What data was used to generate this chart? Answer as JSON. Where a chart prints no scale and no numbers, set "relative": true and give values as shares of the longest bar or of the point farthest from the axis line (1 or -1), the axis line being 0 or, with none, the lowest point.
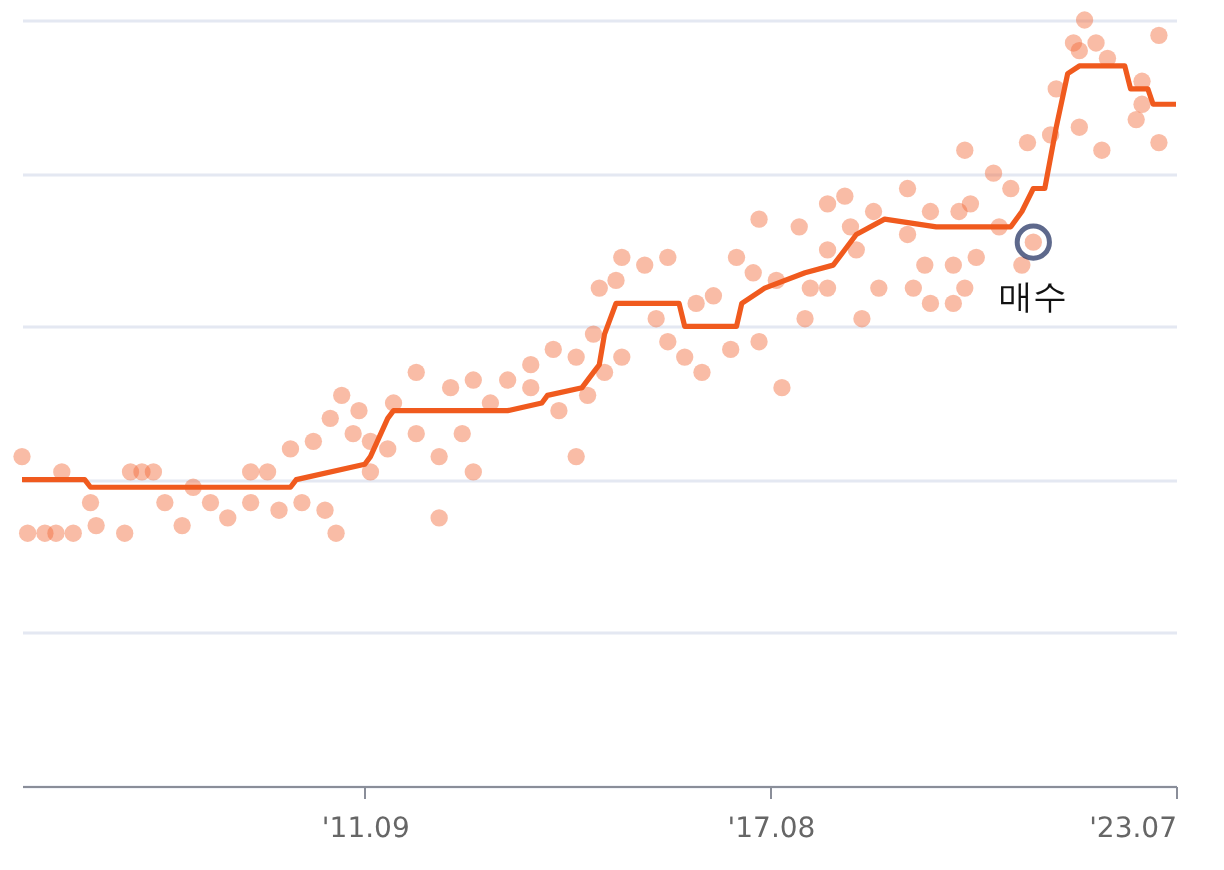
{
  "chart_data": {
    "type": "scatter",
    "relative": true,
    "grid": "y",
    "xlim": [
      "2006-09",
      "2023-07"
    ],
    "xticks": [
      {
        "value": "2011-09",
        "label": "'11.09"
      },
      {
        "value": "2017-08",
        "label": "'17.08"
      },
      {
        "value": "2023-07",
        "label": "'23.07"
      }
    ],
    "series": [
      {
        "type": "scatter",
        "color": "#f26a3a",
        "marker": "circle",
        "x": [
          "2006-09",
          "2006-10",
          "2007-01",
          "2007-03",
          "2007-04",
          "2007-06",
          "2007-09",
          "2007-10",
          "2008-03",
          "2008-04",
          "2008-06",
          "2008-08",
          "2008-10",
          "2009-01",
          "2009-03",
          "2009-06",
          "2009-09",
          "2010-01",
          "2010-01",
          "2010-04",
          "2010-06",
          "2010-08",
          "2010-10",
          "2010-12",
          "2011-02",
          "2011-04",
          "2011-03",
          "2011-05",
          "2011-07",
          "2011-08",
          "2011-10",
          "2011-10",
          "2012-01",
          "2012-02",
          "2012-06",
          "2012-06",
          "2012-10",
          "2012-10",
          "2012-12",
          "2013-02",
          "2013-04",
          "2013-04",
          "2013-07",
          "2013-10",
          "2014-02",
          "2014-02",
          "2014-06",
          "2014-07",
          "2014-10",
          "2014-10",
          "2014-12",
          "2015-01",
          "2015-02",
          "2015-03",
          "2015-05",
          "2015-06",
          "2015-06",
          "2015-10",
          "2015-12",
          "2016-02",
          "2016-02",
          "2016-05",
          "2016-07",
          "2016-08",
          "2016-10",
          "2017-01",
          "2017-02",
          "2017-06",
          "2017-05",
          "2017-06",
          "2017-10",
          "2017-09",
          "2018-01",
          "2018-02",
          "2018-03",
          "2018-06",
          "2018-06",
          "2018-06",
          "2018-09",
          "2018-10",
          "2018-11",
          "2018-12",
          "2019-03",
          "2019-02",
          "2019-08",
          "2019-08",
          "2019-09",
          "2019-11",
          "2019-12",
          "2019-12",
          "2020-04",
          "2020-04",
          "2020-06",
          "2020-05",
          "2020-07",
          "2020-06",
          "2020-08",
          "2020-11",
          "2020-12",
          "2021-02",
          "2021-05",
          "2021-04",
          "2021-06",
          "2021-09",
          "2021-10",
          "2022-01",
          "2022-02",
          "2022-02",
          "2022-03",
          "2022-05",
          "2022-06",
          "2022-07",
          "2022-12",
          "2023-01",
          "2023-01",
          "2023-04",
          "2023-04"
        ],
        "values": [
          0.43,
          0.33,
          0.33,
          0.33,
          0.41,
          0.33,
          0.37,
          0.34,
          0.33,
          0.41,
          0.41,
          0.41,
          0.37,
          0.34,
          0.39,
          0.37,
          0.35,
          0.37,
          0.41,
          0.41,
          0.36,
          0.44,
          0.37,
          0.45,
          0.36,
          0.33,
          0.48,
          0.51,
          0.46,
          0.49,
          0.45,
          0.41,
          0.44,
          0.5,
          0.54,
          0.46,
          0.35,
          0.43,
          0.52,
          0.46,
          0.41,
          0.53,
          0.5,
          0.53,
          0.55,
          0.52,
          0.57,
          0.49,
          0.43,
          0.56,
          0.51,
          0.59,
          0.65,
          0.54,
          0.66,
          0.69,
          0.56,
          0.68,
          0.61,
          0.69,
          0.58,
          0.56,
          0.63,
          0.54,
          0.64,
          0.57,
          0.69,
          0.74,
          0.67,
          0.58,
          0.52,
          0.66,
          0.73,
          0.61,
          0.65,
          0.7,
          0.65,
          0.76,
          0.77,
          0.73,
          0.7,
          0.61,
          0.65,
          0.75,
          0.78,
          0.72,
          0.65,
          0.68,
          0.63,
          0.75,
          0.68,
          0.63,
          0.65,
          0.75,
          0.76,
          0.83,
          0.69,
          0.8,
          0.73,
          0.78,
          0.84,
          0.68,
          0.71,
          0.85,
          0.91,
          0.97,
          0.86,
          0.96,
          1,
          0.97,
          0.83,
          0.95,
          0.87,
          0.92,
          0.89,
          0.98,
          0.84
        ]
      },
      {
        "type": "line",
        "color": "#f05a1e",
        "x": [
          "2006-09",
          "2007-08",
          "2007-09",
          "2008-09",
          "2008-10",
          "2010-08",
          "2010-09",
          "2011-09",
          "2011-10",
          "2012-01",
          "2012-02",
          "2013-05",
          "2013-10",
          "2014-04",
          "2014-05",
          "2014-11",
          "2015-01",
          "2015-02",
          "2015-03",
          "2015-05",
          "2016-04",
          "2016-05",
          "2017-02",
          "2017-03",
          "2017-07",
          "2018-02",
          "2018-07",
          "2018-09",
          "2018-11",
          "2019-04",
          "2020-01",
          "2021-02",
          "2021-04",
          "2021-06",
          "2021-08",
          "2021-10",
          "2021-12",
          "2022-02",
          "2022-10",
          "2022-11",
          "2023-02",
          "2023-03",
          "2023-07"
        ],
        "values": [
          0.4,
          0.4,
          0.39,
          0.39,
          0.39,
          0.39,
          0.4,
          0.42,
          0.43,
          0.48,
          0.49,
          0.49,
          0.49,
          0.5,
          0.51,
          0.52,
          0.54,
          0.55,
          0.59,
          0.63,
          0.63,
          0.6,
          0.6,
          0.63,
          0.65,
          0.67,
          0.68,
          0.7,
          0.72,
          0.74,
          0.73,
          0.73,
          0.75,
          0.78,
          0.78,
          0.86,
          0.93,
          0.94,
          0.94,
          0.91,
          0.91,
          0.89,
          0.89
        ]
      }
    ],
    "annotations": [
      {
        "text": "매수",
        "x": "2021-06",
        "y": 0.71
      }
    ]
  }
}
